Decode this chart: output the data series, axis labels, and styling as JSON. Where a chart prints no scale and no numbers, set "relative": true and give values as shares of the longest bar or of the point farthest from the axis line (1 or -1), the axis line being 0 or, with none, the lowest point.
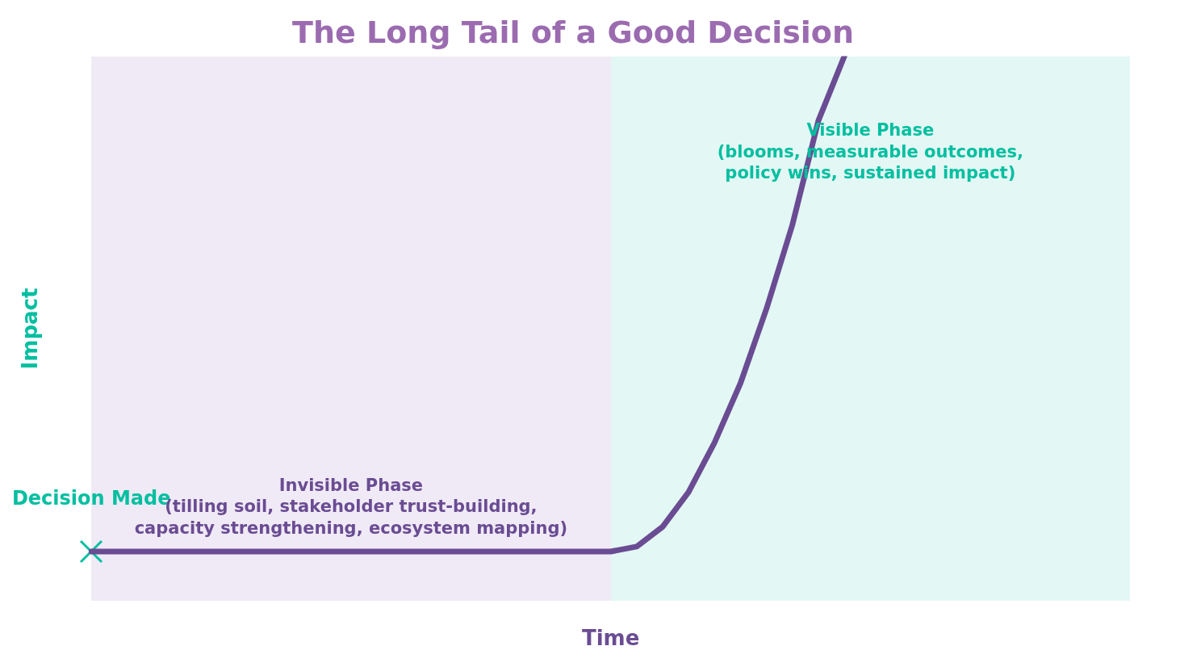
{
  "chart_data": {
    "type": "line",
    "title": "The Long Tail of a Good Decision",
    "xlabel": "Time",
    "ylabel": "Impact",
    "relative": true,
    "grid": false,
    "legend": false,
    "categories": [
      null,
      null,
      null,
      null,
      null,
      null,
      null,
      null,
      null,
      null,
      null,
      null,
      null,
      null,
      null,
      null,
      null,
      null,
      null,
      null,
      null,
      null,
      null,
      null,
      null,
      null,
      null,
      null,
      null,
      null,
      null,
      null,
      null,
      null,
      null,
      null,
      null,
      null,
      null,
      null,
      null
    ],
    "series": [
      {
        "color": "#6a4c93",
        "values": [
          0,
          0,
          0,
          0,
          0,
          0,
          0,
          0,
          0,
          0,
          0,
          0,
          0,
          0,
          0,
          0,
          0,
          0,
          0,
          0,
          0,
          0.01,
          0.05,
          0.12,
          0.22,
          0.34,
          0.49,
          0.66,
          0.87,
          1,
          null,
          null,
          null,
          null,
          null,
          null,
          null,
          null,
          null,
          null,
          null
        ]
      }
    ],
    "annotations": [
      "Decision Made",
      "Invisible Phase\n(tilling soil, stakeholder trust-building,\ncapacity strengthening, ecosystem mapping)",
      "Visible Phase\n(blooms, measurable outcomes,\npolicy wins, sustained impact)"
    ]
  }
}
